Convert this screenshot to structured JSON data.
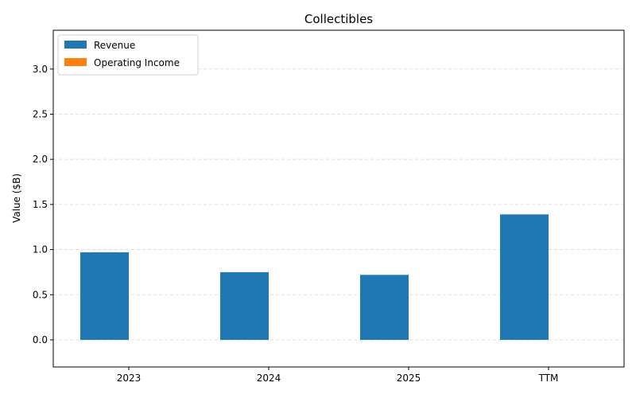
{
  "chart_data": {
    "type": "bar",
    "title": "Collectibles",
    "xlabel": "",
    "ylabel": "Value ($B)",
    "categories": [
      "2023",
      "2024",
      "2025",
      "TTM"
    ],
    "series": [
      {
        "name": "Revenue",
        "values": [
          0.97,
          0.75,
          0.72,
          1.39
        ],
        "color": "#1f77b4"
      },
      {
        "name": "Operating Income",
        "values": [
          0.0,
          0.0,
          0.0,
          0.0
        ],
        "color": "#ff7f0e"
      }
    ],
    "ylim": [
      -0.3,
      3.43
    ],
    "yticks": [
      "0.0",
      "0.5",
      "1.0",
      "1.5",
      "2.0",
      "2.5",
      "3.0"
    ],
    "grid": "horizontal dashed",
    "legend_position": "top-left"
  }
}
